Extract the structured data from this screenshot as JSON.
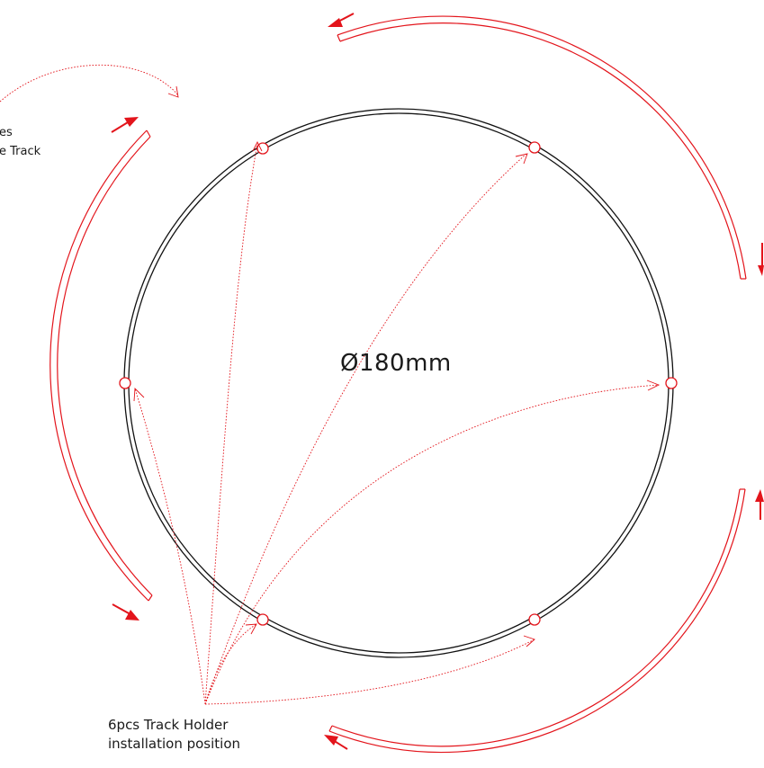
{
  "diameter_label": "Ø180mm",
  "holder_label": {
    "line1": "6pcs Track Holder",
    "line2": "installation position"
  },
  "track_label_fragment": {
    "line1": "es",
    "line2": "e Track"
  },
  "colors": {
    "ring": "#111111",
    "track": "#e3141b",
    "arrow": "#e3141b",
    "leader": "#e3141b",
    "text": "#1a1a1a"
  },
  "holder_count": 6,
  "track_segment_count": 4
}
